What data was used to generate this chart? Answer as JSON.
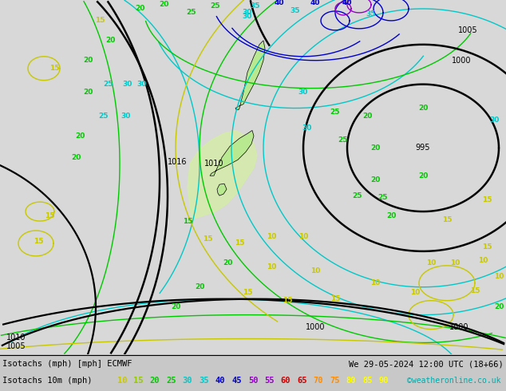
{
  "title_left": "Isotachs (mph) [mph] ECMWF",
  "title_right": "We 29-05-2024 12:00 UTC (18+66)",
  "subtitle_left": "Isotachs 10m (mph)",
  "copyright": "©weatheronline.co.uk",
  "legend_values": [
    10,
    15,
    20,
    25,
    30,
    35,
    40,
    45,
    50,
    55,
    60,
    65,
    70,
    75,
    80,
    85,
    90
  ],
  "legend_colors": [
    "#c8c800",
    "#96c800",
    "#00c800",
    "#00c800",
    "#00c8c8",
    "#00c8c8",
    "#0000ff",
    "#0000ff",
    "#aa00cc",
    "#aa00cc",
    "#cc0000",
    "#cc0000",
    "#ff8c00",
    "#ff8c00",
    "#ffff00",
    "#ffff00",
    "#ffff00"
  ],
  "map_bg": "#c8c8c8",
  "sea_color": "#d8d8d8",
  "land_green_light": "#b8e890",
  "land_green_mid": "#90d870",
  "land_green_dark": "#70c850",
  "isotach_yellow": "#c8c800",
  "isotach_lgreen": "#96c800",
  "isotach_green": "#00c800",
  "isotach_cyan": "#00c8c8",
  "isotach_blue": "#0000cd",
  "isotach_purple": "#9600c8",
  "isotach_red": "#cc0000",
  "isotach_orange": "#ff8c00",
  "isotach_lyellow": "#ffff00",
  "pressure_color": "#000000",
  "bottom_bg": "#ffffff",
  "text_color": "#000000"
}
